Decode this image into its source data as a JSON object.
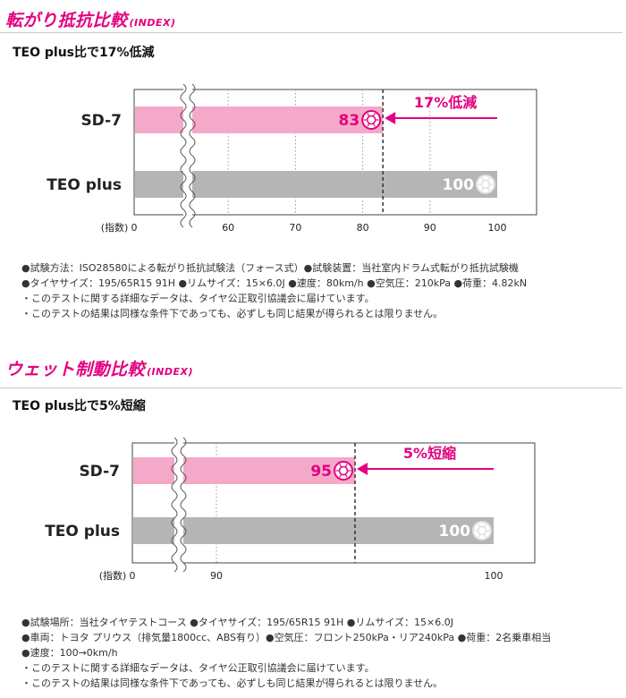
{
  "sections": [
    {
      "title": "転がり抵抗比較",
      "index_label": "(INDEX)",
      "subtitle": "TEO plus比で17%低減",
      "notes": [
        "●試験方法：ISO28580による転がり抵抗試験法（フォース式）●試験装置：当社室内ドラム式転がり抵抗試験機",
        "●タイヤサイズ：195/65R15 91H ●リムサイズ：15×6.0J ●速度：80km/h ●空気圧：210kPa ●荷重：4.82kN",
        "・このテストに関する詳細なデータは、タイヤ公正取引協議会に届けています。",
        "・このテストの結果は同様な条件下であっても、必ずしも同じ結果が得られるとは限りません。"
      ]
    },
    {
      "title": "ウェット制動比較",
      "index_label": "(INDEX)",
      "subtitle": "TEO plus比で5%短縮",
      "notes": [
        "●試験場所：当社タイヤテストコース ●タイヤサイズ：195/65R15 91H ●リムサイズ：15×6.0J",
        "●車両：トヨタ プリウス（排気量1800cc、ABS有り）●空気圧：フロント250kPa・リア240kPa ●荷重：2名乗車相当",
        "●速度：100→0km/h",
        "・このテストに関する詳細なデータは、タイヤ公正取引協議会に届けています。",
        "・このテストの結果は同様な条件下であっても、必ずしも同じ結果が得られるとは限りません。"
      ]
    }
  ],
  "chart_data": [
    {
      "type": "bar",
      "orientation": "horizontal",
      "title": "転がり抵抗比較",
      "subtitle": "TEO plus比で17%低減",
      "categories": [
        "SD-7",
        "TEO plus"
      ],
      "values": [
        83,
        100
      ],
      "xlabel": "(指数)",
      "x_ticks": [
        "0",
        "60",
        "70",
        "80",
        "90",
        "100"
      ],
      "axis_break_after": 0,
      "xlim": [
        50,
        100
      ],
      "reference_line": 83,
      "annotation": "17%低減",
      "grid": true,
      "colors": {
        "SD-7": "#f4a9c8",
        "TEO plus": "#b5b5b5",
        "annotation": "#e4007f"
      }
    },
    {
      "type": "bar",
      "orientation": "horizontal",
      "title": "ウェット制動比較",
      "subtitle": "TEO plus比で5%短縮",
      "categories": [
        "SD-7",
        "TEO plus"
      ],
      "values": [
        95,
        100
      ],
      "xlabel": "(指数)",
      "x_ticks": [
        "0",
        "90",
        "100"
      ],
      "axis_break_after": 0,
      "xlim": [
        85,
        100
      ],
      "reference_line": 95,
      "annotation": "5%短縮",
      "grid": true,
      "colors": {
        "SD-7": "#f4a9c8",
        "TEO plus": "#b5b5b5",
        "annotation": "#e4007f"
      }
    }
  ]
}
